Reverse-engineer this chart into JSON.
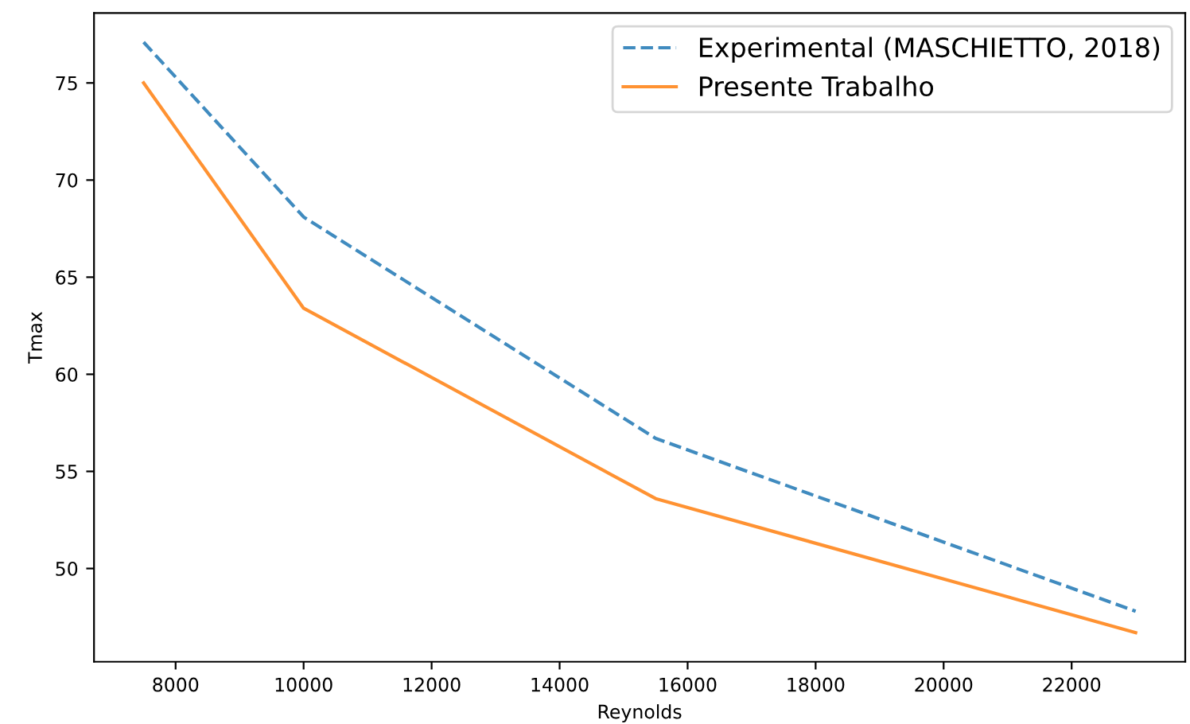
{
  "chart_data": {
    "type": "line",
    "xlabel": "Reynolds",
    "ylabel": "Tmax",
    "x": [
      7500,
      10000,
      15500,
      23000
    ],
    "series": [
      {
        "name": "Experimental (MASCHIETTO, 2018)",
        "color": "#1f77b4",
        "line_style": "dashed",
        "values": [
          77.1,
          68.1,
          56.7,
          47.8
        ]
      },
      {
        "name": "Presente Trabalho",
        "color": "#ff7f0e",
        "line_style": "solid",
        "values": [
          75.0,
          63.4,
          53.6,
          46.7
        ]
      }
    ],
    "xlim": [
      6725,
      23775
    ],
    "ylim": [
      45.2,
      78.6
    ],
    "xticks": [
      8000,
      10000,
      12000,
      14000,
      16000,
      18000,
      20000,
      22000
    ],
    "yticks": [
      50,
      55,
      60,
      65,
      70,
      75
    ],
    "grid": false,
    "legend": "top right"
  }
}
